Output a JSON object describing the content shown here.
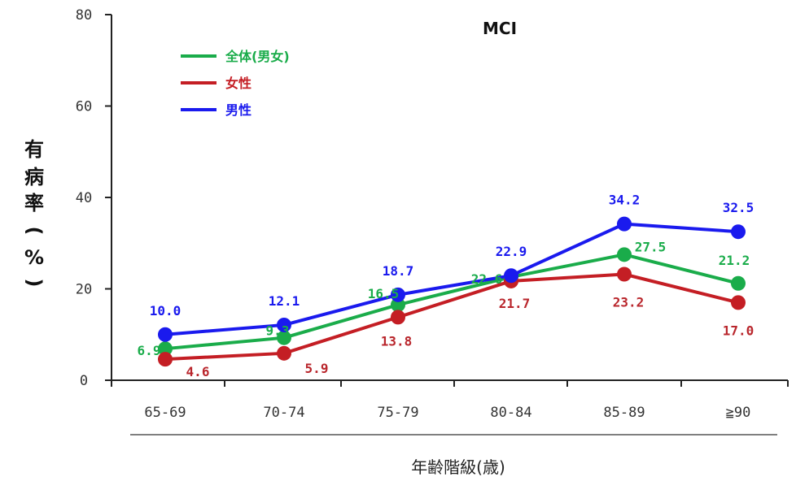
{
  "chart_data": {
    "type": "line",
    "title": "MCI",
    "xlabel": "年齢階級(歳)",
    "ylabel": [
      "有",
      "病",
      "率",
      "(",
      "%",
      ")"
    ],
    "categories": [
      "65-69",
      "70-74",
      "75-79",
      "80-84",
      "85-89",
      "≧90"
    ],
    "ylim": [
      0,
      80
    ],
    "yticks": [
      0,
      20,
      40,
      60,
      80
    ],
    "grid": false,
    "legend_position": "top-left",
    "series": [
      {
        "name": "全体(男女)",
        "color": "#1aac4a",
        "values": [
          6.9,
          9.3,
          16.5,
          22.6,
          27.5,
          21.2
        ],
        "labels": [
          "6.9",
          "9.3",
          "16.5",
          "22.6",
          "27.5",
          "21.2"
        ]
      },
      {
        "name": "女性",
        "color": "#c41e24",
        "values": [
          4.6,
          5.9,
          13.8,
          21.7,
          23.2,
          17.0
        ],
        "labels": [
          "4.6",
          "5.9",
          "13.8",
          "21.7",
          "23.2",
          "17.0"
        ]
      },
      {
        "name": "男性",
        "color": "#1a1aee",
        "values": [
          10.0,
          12.1,
          18.7,
          22.9,
          34.2,
          32.5
        ],
        "labels": [
          "10.0",
          "12.1",
          "18.7",
          "22.9",
          "34.2",
          "32.5"
        ]
      }
    ]
  }
}
